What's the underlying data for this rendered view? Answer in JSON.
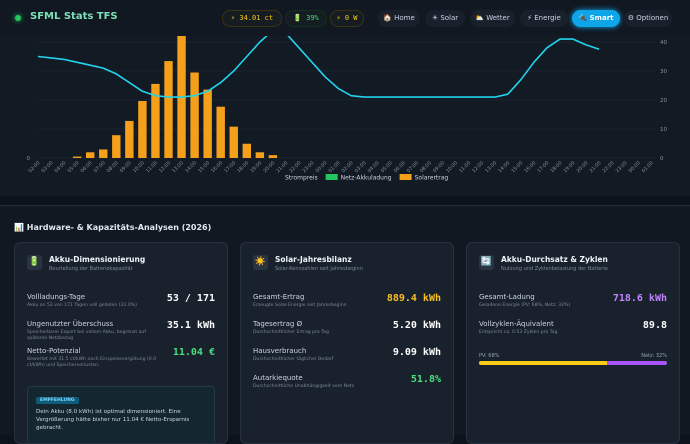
{
  "header": {
    "title": "SFML Stats TFS",
    "pills": [
      "⚡ 34.01 ct",
      "🔋 39%",
      "⚡ 0 W"
    ],
    "nav": [
      "🏠 Home",
      "☀ Solar",
      "⛅ Wetter",
      "⚡ Energie",
      "🔌 Smart",
      "⚙ Optionen"
    ]
  },
  "chart_data": {
    "type": "bar",
    "categories": [
      "02:00",
      "03:00",
      "04:00",
      "05:00",
      "06:00",
      "07:00",
      "08:00",
      "09:00",
      "10:00",
      "11:00",
      "12:00",
      "13:00",
      "14:00",
      "15:00",
      "16:00",
      "17:00",
      "18:00",
      "19:00",
      "20:00",
      "21:00",
      "22:00",
      "23:00",
      "00:00",
      "01:00",
      "02:00",
      "03:00",
      "04:00",
      "05:00",
      "06:00",
      "07:00",
      "08:00",
      "09:00",
      "10:00",
      "11:00",
      "12:00",
      "13:00",
      "14:00",
      "15:00",
      "16:00",
      "17:00",
      "18:00",
      "19:00",
      "20:00",
      "21:00",
      "22:00",
      "23:00",
      "00:00",
      "01:00"
    ],
    "series": [
      {
        "name": "Solarertrag",
        "color": "#f5a01a",
        "values": [
          0,
          0,
          0,
          0.05,
          0.2,
          0.3,
          0.8,
          1.3,
          2.0,
          2.6,
          3.4,
          4.3,
          3.0,
          2.4,
          1.8,
          1.1,
          0.5,
          0.2,
          0.1,
          0,
          0,
          0,
          0,
          0,
          0,
          0,
          0,
          0,
          0,
          0,
          0,
          0,
          0,
          0,
          0,
          0,
          0,
          0,
          0,
          0,
          0,
          0,
          0,
          0,
          0,
          0,
          0,
          0
        ]
      },
      {
        "name": "Netz-Akkuladung",
        "color": "#22c55e",
        "values": [
          null,
          null,
          null,
          null,
          null,
          null,
          null,
          null,
          null,
          null,
          null,
          null,
          null,
          null,
          null,
          null,
          null,
          null,
          null,
          null,
          null,
          null,
          null,
          null,
          null,
          null,
          null,
          null,
          null,
          null,
          null,
          null,
          null,
          null,
          null,
          null,
          null,
          null,
          null,
          null,
          null,
          null,
          null,
          null,
          null,
          null,
          null,
          null
        ]
      },
      {
        "name": "Strompreis",
        "color": "#22d3ee",
        "type": "line",
        "axis": "y2",
        "values": [
          35,
          34.5,
          34,
          33,
          32,
          31,
          29,
          26,
          23,
          21.5,
          21,
          21,
          21.5,
          23,
          26,
          30,
          35,
          40,
          44,
          43,
          38,
          33,
          28,
          24,
          21.5,
          21,
          21,
          21,
          21,
          21,
          21,
          21,
          21,
          21,
          21,
          21,
          22,
          27,
          33,
          38,
          41,
          41,
          39,
          37.5,
          null,
          null,
          null,
          null
        ]
      }
    ],
    "ylim": [
      0,
      4
    ],
    "yticks": [
      0
    ],
    "y2lim": [
      0,
      40
    ],
    "y2ticks": [
      0,
      10,
      20,
      30,
      40
    ],
    "grid": true
  },
  "section": {
    "title": "📊 Hardware- & Kapazitäts-Analysen (2026)"
  },
  "cards": [
    {
      "icon": "🔋",
      "title": "Akku-Dimensionierung",
      "subtitle": "Beurteilung der Batteriekapazität",
      "rows": [
        {
          "label": "Vollladungs-Tage",
          "sub": "Akku an 53 von 171 Tagen voll geladen (31.0%)",
          "value": "53 / 171",
          "color": "#ffffff"
        },
        {
          "label": "Ungenutzter Überschuss",
          "sub": "Speicherbarer Export bei vollem Akku, begrenzt auf späteren Netzbezug",
          "value": "35.1 kWh",
          "color": "#ffffff"
        },
        {
          "label": "Netto-Potenzial",
          "sub": "Bewertet mit 31.5 ct/kWh nach Einspeisevergütung (0.0 ct/kWh) und Speicherverlusten.",
          "value": "11.04 €",
          "color": "#4ade80"
        }
      ],
      "note": {
        "badge": "EMPFEHLUNG",
        "text": "Dein Akku (8.0 kWh) ist optimal dimensioniert. Eine Vergrößerung hätte bisher nur 11.04 € Netto-Ersparnis gebracht."
      }
    },
    {
      "icon": "☀️",
      "title": "Solar-Jahresbilanz",
      "subtitle": "Solar-Kennzahlen seit Jahresbeginn",
      "rows": [
        {
          "label": "Gesamt-Ertrag",
          "sub": "Erzeugte Solar-Energie seit Jahresbeginn",
          "value": "889.4 kWh",
          "color": "#fbbf24"
        },
        {
          "label": "Tagesertrag Ø",
          "sub": "Durchschnittlicher Ertrag pro Tag",
          "value": "5.20 kWh",
          "color": "#ffffff"
        },
        {
          "label": "Hausverbrauch",
          "sub": "Durchschnittlicher täglicher Bedarf",
          "value": "9.09 kWh",
          "color": "#ffffff"
        },
        {
          "label": "Autarkiequote",
          "sub": "Durchschnittliche Unabhängigkeit vom Netz",
          "value": "51.8%",
          "color": "#4ade80"
        }
      ]
    },
    {
      "icon": "🔄",
      "title": "Akku-Durchsatz & Zyklen",
      "subtitle": "Nutzung und Zyklenbelastung der Batterie",
      "rows": [
        {
          "label": "Gesamt-Ladung",
          "sub": "Geladene Energie (PV: 68%, Netz: 32%)",
          "value": "718.6 kWh",
          "color": "#c084fc"
        },
        {
          "label": "Vollzyklen-Äquivalent",
          "sub": "Entspricht ca. 0.53 Zyklen pro Tag",
          "value": "89.8",
          "color": "#ffffff"
        }
      ],
      "split": [
        {
          "label": "PV: 68%",
          "value": 68,
          "color": "#facc15"
        },
        {
          "label": "Netz: 32%",
          "value": 32,
          "color": "#a855f7"
        }
      ]
    }
  ]
}
